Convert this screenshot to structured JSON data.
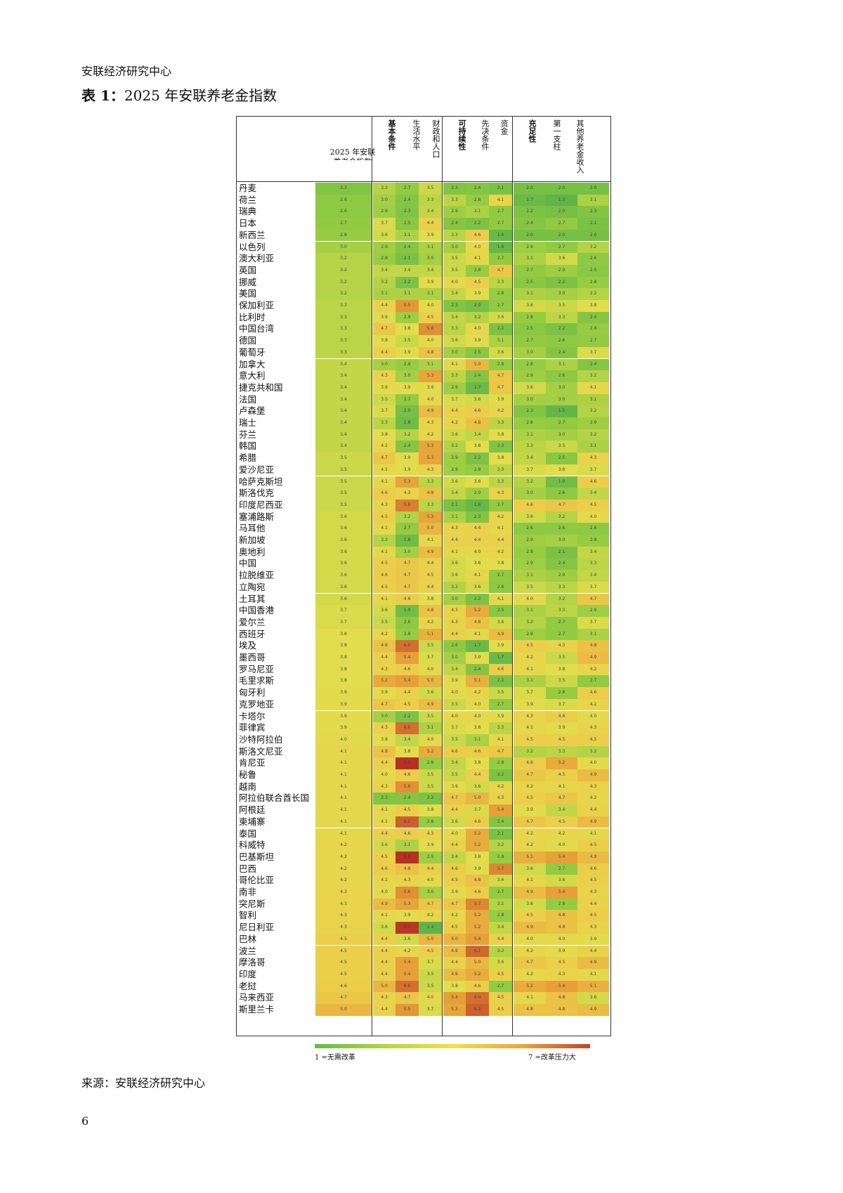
{
  "header": "安联经济研究中心",
  "title_bold": "表 1：",
  "title_rest": "2025 年安联养老金指数",
  "table": {
    "index_label_line1": "2025  年安联",
    "index_label_line2": "养老金指数",
    "col_headers": [
      {
        "text": "基本条件",
        "bold": true
      },
      {
        "text": "生活水平",
        "bold": false
      },
      {
        "text": "财政和人口",
        "bold": false
      },
      {
        "text": "可持续性",
        "bold": true
      },
      {
        "text": "先决条件",
        "bold": false
      },
      {
        "text": "资金",
        "bold": false
      },
      {
        "text": "充足性",
        "bold": true
      },
      {
        "text": "第一支柱",
        "bold": false
      },
      {
        "text": "其他养老金收入",
        "bold": false
      }
    ],
    "rows": [
      [
        "丹麦",
        "2.3",
        "3.2",
        "2.7",
        "3.5",
        "2.3",
        "2.4",
        "2.1",
        "2.0",
        "2.0",
        "2.0"
      ],
      [
        "荷兰",
        "2.6",
        "3.0",
        "2.4",
        "3.3",
        "3.3",
        "2.8",
        "4.1",
        "1.7",
        "1.3",
        "3.1"
      ],
      [
        "瑞典",
        "2.6",
        "2.9",
        "2.3",
        "3.4",
        "2.9",
        "3.1",
        "2.7",
        "2.2",
        "2.0",
        "2.3"
      ],
      [
        "日本",
        "2.7",
        "3.7",
        "2.5",
        "4.4",
        "2.4",
        "2.2",
        "2.7",
        "2.4",
        "2.7",
        "2.1"
      ],
      [
        "新西兰",
        "2.8",
        "3.6",
        "3.1",
        "3.9",
        "3.3",
        "4.6",
        "1.6",
        "2.0",
        "2.0",
        "2.0"
      ],
      [
        "以色列",
        "3.0",
        "2.9",
        "2.4",
        "3.1",
        "3.0",
        "4.0",
        "1.6",
        "2.9",
        "2.7",
        "3.2"
      ],
      [
        "澳大利亚",
        "3.2",
        "2.8",
        "2.1",
        "3.0",
        "3.5",
        "4.1",
        "2.7",
        "3.1",
        "3.6",
        "2.6"
      ],
      [
        "英国",
        "3.2",
        "3.4",
        "3.4",
        "3.4",
        "3.5",
        "2.8",
        "4.7",
        "2.7",
        "2.9",
        "2.5"
      ],
      [
        "挪威",
        "3.2",
        "3.2",
        "2.2",
        "3.9",
        "4.0",
        "4.5",
        "3.3",
        "2.5",
        "2.2",
        "2.8"
      ],
      [
        "美国",
        "3.2",
        "3.1",
        "3.1",
        "3.1",
        "3.4",
        "3.9",
        "2.8",
        "3.1",
        "3.0",
        "3.2"
      ],
      [
        "保加利亚",
        "3.3",
        "4.4",
        "5.5",
        "4.0",
        "2.3",
        "2.0",
        "2.7",
        "3.6",
        "3.5",
        "3.8"
      ],
      [
        "比利时",
        "3.3",
        "3.9",
        "2.9",
        "4.5",
        "3.4",
        "3.2",
        "3.6",
        "2.8",
        "3.3",
        "2.4"
      ],
      [
        "中国台湾",
        "3.3",
        "4.7",
        "3.8",
        "5.6",
        "3.3",
        "4.0",
        "2.2",
        "2.5",
        "2.2",
        "2.8"
      ],
      [
        "德国",
        "3.3",
        "3.8",
        "3.5",
        "4.0",
        "3.6",
        "3.9",
        "3.1",
        "2.7",
        "2.6",
        "2.7"
      ],
      [
        "葡萄牙",
        "3.3",
        "4.4",
        "3.9",
        "4.8",
        "3.0",
        "2.5",
        "3.6",
        "3.0",
        "2.4",
        "3.7"
      ],
      [
        "加拿大",
        "3.4",
        "3.0",
        "2.8",
        "3.1",
        "4.1",
        "5.0",
        "2.8",
        "2.8",
        "3.1",
        "2.4"
      ],
      [
        "意大利",
        "3.4",
        "4.3",
        "3.0",
        "5.3",
        "3.3",
        "2.4",
        "4.7",
        "2.9",
        "2.6",
        "3.2"
      ],
      [
        "捷克共和国",
        "3.4",
        "3.9",
        "3.9",
        "3.9",
        "2.9",
        "1.7",
        "4.7",
        "3.6",
        "3.0",
        "4.1"
      ],
      [
        "法国",
        "3.4",
        "3.5",
        "2.7",
        "4.0",
        "3.7",
        "3.6",
        "3.9",
        "3.0",
        "3.0",
        "3.1"
      ],
      [
        "卢森堡",
        "3.4",
        "3.7",
        "2.0",
        "4.9",
        "4.4",
        "4.6",
        "4.2",
        "2.3",
        "1.5",
        "3.2"
      ],
      [
        "瑞士",
        "3.4",
        "3.3",
        "1.8",
        "4.3",
        "4.2",
        "4.8",
        "3.3",
        "2.8",
        "2.7",
        "2.9"
      ],
      [
        "芬兰",
        "3.4",
        "3.8",
        "3.2",
        "4.2",
        "3.6",
        "3.4",
        "3.8",
        "3.1",
        "3.0",
        "3.2"
      ],
      [
        "韩国",
        "3.4",
        "4.2",
        "2.4",
        "5.3",
        "3.2",
        "3.8",
        "2.3",
        "3.3",
        "3.5",
        "3.1"
      ],
      [
        "希腊",
        "3.5",
        "4.7",
        "3.9",
        "5.3",
        "2.9",
        "2.2",
        "3.8",
        "3.4",
        "2.5",
        "4.3"
      ],
      [
        "爱沙尼亚",
        "3.5",
        "4.1",
        "3.9",
        "4.3",
        "2.9",
        "2.8",
        "3.3",
        "3.7",
        "3.8",
        "3.7"
      ],
      [
        "哈萨克斯坦",
        "3.5",
        "4.1",
        "5.3",
        "3.3",
        "3.6",
        "3.8",
        "3.3",
        "3.2",
        "1.9",
        "4.6"
      ],
      [
        "斯洛伐克",
        "3.5",
        "4.6",
        "4.3",
        "4.8",
        "3.4",
        "2.9",
        "4.3",
        "3.0",
        "2.6",
        "3.4"
      ],
      [
        "印度尼西亚",
        "3.5",
        "4.3",
        "5.8",
        "3.3",
        "2.1",
        "1.6",
        "2.7",
        "4.6",
        "4.7",
        "4.5"
      ],
      [
        "塞浦路斯",
        "3.6",
        "4.5",
        "3.2",
        "5.3",
        "3.1",
        "2.3",
        "4.2",
        "3.6",
        "3.2",
        "4.0"
      ],
      [
        "马耳他",
        "3.6",
        "4.1",
        "2.7",
        "5.0",
        "4.3",
        "4.4",
        "4.1",
        "2.6",
        "2.6",
        "2.6"
      ],
      [
        "新加坡",
        "3.6",
        "3.2",
        "1.8",
        "4.1",
        "4.4",
        "4.4",
        "4.4",
        "2.9",
        "3.0",
        "2.8"
      ],
      [
        "奥地利",
        "3.6",
        "4.1",
        "3.0",
        "4.9",
        "4.1",
        "4.0",
        "4.2",
        "2.8",
        "2.1",
        "3.4"
      ],
      [
        "中国",
        "3.6",
        "4.5",
        "4.7",
        "4.4",
        "3.6",
        "3.8",
        "3.8",
        "2.9",
        "2.4",
        "3.3"
      ],
      [
        "拉脱维亚",
        "3.6",
        "4.6",
        "4.7",
        "4.5",
        "3.6",
        "4.1",
        "2.7",
        "3.1",
        "2.9",
        "3.4"
      ],
      [
        "立陶宛",
        "3.6",
        "4.5",
        "4.7",
        "4.4",
        "3.2",
        "3.6",
        "2.6",
        "3.5",
        "3.3",
        "3.7"
      ],
      [
        "土耳其",
        "3.6",
        "4.1",
        "4.6",
        "3.8",
        "3.0",
        "2.2",
        "4.1",
        "4.0",
        "3.2",
        "4.7"
      ],
      [
        "中国香港",
        "3.7",
        "3.6",
        "1.9",
        "4.8",
        "4.3",
        "5.2",
        "2.5",
        "3.1",
        "3.3",
        "2.9"
      ],
      [
        "爱尔兰",
        "3.7",
        "3.5",
        "2.6",
        "4.2",
        "4.3",
        "4.8",
        "3.6",
        "3.2",
        "2.7",
        "3.7"
      ],
      [
        "西班牙",
        "3.8",
        "4.2",
        "2.8",
        "5.1",
        "4.4",
        "4.1",
        "4.9",
        "2.9",
        "2.7",
        "3.1"
      ],
      [
        "埃及",
        "3.8",
        "4.8",
        "6.0",
        "3.5",
        "2.6",
        "1.7",
        "3.9",
        "4.5",
        "4.3",
        "4.8"
      ],
      [
        "墨西哥",
        "3.8",
        "4.4",
        "5.4",
        "3.7",
        "3.0",
        "3.9",
        "1.7",
        "4.2",
        "3.5",
        "4.9"
      ],
      [
        "罗马尼亚",
        "3.8",
        "4.3",
        "4.6",
        "4.0",
        "3.4",
        "2.4",
        "4.6",
        "4.1",
        "3.8",
        "4.2"
      ],
      [
        "毛里求斯",
        "3.8",
        "5.2",
        "5.4",
        "5.0",
        "3.9",
        "5.1",
        "2.2",
        "3.1",
        "3.5",
        "2.7"
      ],
      [
        "匈牙利",
        "3.9",
        "3.9",
        "4.4",
        "3.6",
        "4.0",
        "4.2",
        "3.5",
        "3.7",
        "2.8",
        "4.6"
      ],
      [
        "克罗地亚",
        "3.9",
        "4.7",
        "4.5",
        "4.9",
        "3.5",
        "4.0",
        "2.7",
        "3.9",
        "3.7",
        "4.2"
      ],
      [
        "卡塔尔",
        "3.9",
        "3.0",
        "2.2",
        "3.5",
        "4.0",
        "4.0",
        "3.9",
        "4.3",
        "4.6",
        "4.0"
      ],
      [
        "菲律宾",
        "3.9",
        "4.3",
        "6.0",
        "3.1",
        "3.7",
        "3.8",
        "3.3",
        "4.1",
        "3.9",
        "4.3"
      ],
      [
        "沙特阿拉伯",
        "4.0",
        "3.8",
        "3.4",
        "4.0",
        "3.5",
        "3.1",
        "4.1",
        "4.5",
        "4.5",
        "4.5"
      ],
      [
        "斯洛文尼亚",
        "4.1",
        "4.8",
        "3.8",
        "5.2",
        "4.6",
        "4.6",
        "4.7",
        "3.2",
        "3.3",
        "3.2"
      ],
      [
        "肯尼亚",
        "4.1",
        "4.4",
        "6.9",
        "2.8",
        "3.4",
        "3.8",
        "2.8",
        "4.6",
        "5.2",
        "4.0"
      ],
      [
        "秘鲁",
        "4.1",
        "4.0",
        "4.6",
        "3.5",
        "3.5",
        "4.4",
        "2.2",
        "4.7",
        "4.5",
        "4.9"
      ],
      [
        "越南",
        "4.1",
        "4.3",
        "5.6",
        "3.5",
        "3.9",
        "3.6",
        "4.2",
        "4.2",
        "4.1",
        "4.3"
      ],
      [
        "阿拉伯联合酋长国",
        "4.1",
        "2.3",
        "2.4",
        "2.2",
        "4.7",
        "5.0",
        "4.3",
        "4.5",
        "4.7",
        "4.2"
      ],
      [
        "阿根廷",
        "4.1",
        "4.1",
        "4.5",
        "3.8",
        "4.4",
        "3.7",
        "5.4",
        "3.9",
        "3.4",
        "4.4"
      ],
      [
        "柬埔寨",
        "4.1",
        "4.1",
        "6.2",
        "2.8",
        "3.6",
        "4.6",
        "2.4",
        "4.7",
        "4.5",
        "4.9"
      ],
      [
        "泰国",
        "4.1",
        "4.4",
        "4.6",
        "4.3",
        "4.0",
        "5.2",
        "2.1",
        "4.2",
        "4.2",
        "4.1"
      ],
      [
        "科威特",
        "4.2",
        "3.6",
        "3.1",
        "3.9",
        "4.4",
        "5.2",
        "3.2",
        "4.2",
        "4.0",
        "4.5"
      ],
      [
        "巴基斯坦",
        "4.2",
        "4.5",
        "6.9",
        "2.9",
        "3.4",
        "3.8",
        "2.8",
        "5.1",
        "5.4",
        "4.9"
      ],
      [
        "巴西",
        "4.2",
        "4.6",
        "4.8",
        "4.4",
        "4.6",
        "3.9",
        "5.7",
        "3.6",
        "2.7",
        "4.6"
      ],
      [
        "哥伦比亚",
        "4.2",
        "4.1",
        "4.3",
        "4.0",
        "4.5",
        "4.8",
        "3.6",
        "4.1",
        "3.6",
        "4.5"
      ],
      [
        "南非",
        "4.3",
        "4.0",
        "5.6",
        "3.0",
        "3.9",
        "4.6",
        "2.7",
        "4.9",
        "5.4",
        "4.3"
      ],
      [
        "突尼斯",
        "4.3",
        "4.9",
        "5.3",
        "4.7",
        "4.7",
        "5.7",
        "3.2",
        "3.6",
        "2.8",
        "4.4"
      ],
      [
        "智利",
        "4.3",
        "4.1",
        "3.9",
        "4.2",
        "4.2",
        "5.2",
        "2.8",
        "4.5",
        "4.8",
        "4.5"
      ],
      [
        "尼日利亚",
        "4.3",
        "3.6",
        "6.8",
        "1.4",
        "4.5",
        "5.2",
        "3.4",
        "4.9",
        "4.8",
        "4.3"
      ],
      [
        "巴林",
        "4.5",
        "4.4",
        "3.6",
        "5.0",
        "5.0",
        "5.4",
        "4.4",
        "4.0",
        "4.0",
        "3.9"
      ],
      [
        "波兰",
        "4.5",
        "4.4",
        "4.2",
        "4.5",
        "4.9",
        "6.1",
        "3.2",
        "4.2",
        "3.9",
        "4.4"
      ],
      [
        "摩洛哥",
        "4.5",
        "4.4",
        "5.4",
        "3.7",
        "4.4",
        "5.0",
        "3.6",
        "4.7",
        "4.5",
        "4.9"
      ],
      [
        "印度",
        "4.5",
        "4.4",
        "5.4",
        "3.5",
        "4.9",
        "5.2",
        "4.5",
        "4.2",
        "4.3",
        "4.1"
      ],
      [
        "老挝",
        "4.6",
        "5.0",
        "6.0",
        "3.5",
        "3.8",
        "4.6",
        "2.7",
        "5.2",
        "5.4",
        "5.1"
      ],
      [
        "马来西亚",
        "4.7",
        "4.3",
        "4.7",
        "4.0",
        "5.4",
        "6.0",
        "4.5",
        "4.1",
        "4.8",
        "3.6"
      ],
      [
        "斯里兰卡",
        "5.0",
        "4.4",
        "5.5",
        "3.7",
        "5.3",
        "6.2",
        "4.5",
        "4.8",
        "4.8",
        "4.9"
      ]
    ]
  },
  "legend": {
    "left": "1 =无需改革",
    "right": "7 =改革压力大"
  },
  "source": "来源：安联经济研究中心",
  "page_number": "6",
  "scale_colors": [
    "#5fb548",
    "#a6cf3f",
    "#ece04c",
    "#e7a436",
    "#c0392b"
  ]
}
